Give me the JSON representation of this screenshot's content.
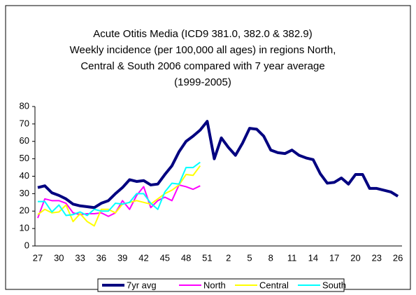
{
  "chart_data": {
    "type": "line",
    "title": [
      "Acute Otitis Media (ICD9 381.0, 382.0 & 382.9)",
      "Weekly incidence (per 100,000 all ages) in regions North,",
      "Central & South 2006 compared with 7 year average",
      "(1999-2005)"
    ],
    "categories": [
      "27",
      null,
      null,
      "30",
      null,
      null,
      "33",
      null,
      null,
      "36",
      null,
      null,
      "39",
      null,
      null,
      "42",
      null,
      null,
      "45",
      null,
      null,
      "48",
      null,
      null,
      "51",
      null,
      null,
      "2",
      null,
      null,
      "5",
      null,
      null,
      "8",
      null,
      null,
      "11",
      null,
      null,
      "14",
      null,
      null,
      "17",
      null,
      null,
      "20",
      null,
      null,
      "23",
      null,
      null,
      "26"
    ],
    "ylim": [
      0,
      80
    ],
    "yticks": [
      0,
      10,
      20,
      30,
      40,
      50,
      60,
      70,
      80
    ],
    "legend": "bottom",
    "series": [
      {
        "name": "7yr avg",
        "color": "#000080",
        "values": [
          33.5,
          34.5,
          30.5,
          29,
          27,
          24,
          23,
          22.5,
          22,
          24.5,
          26,
          30,
          33.5,
          38,
          37,
          37.5,
          35,
          35.5,
          41,
          46,
          54,
          60,
          63,
          66.5,
          71.5,
          50,
          62,
          56.5,
          52,
          59,
          67.5,
          67,
          63,
          55,
          53.5,
          53,
          55,
          52,
          50.5,
          49.5,
          41.5,
          36,
          36.5,
          39,
          35.5,
          41,
          41,
          33,
          33,
          32,
          31,
          28.5
        ]
      },
      {
        "name": "North",
        "color": "#ff00ff",
        "values": [
          16,
          27,
          26,
          26,
          24.5,
          19,
          18,
          18.5,
          18.5,
          19,
          17,
          19,
          26,
          21,
          29,
          34,
          22,
          26,
          28,
          26,
          35,
          34,
          32.5,
          34.5,
          null,
          null,
          null,
          null,
          null,
          null,
          null,
          null,
          null,
          null,
          null,
          null,
          null,
          null,
          null,
          null,
          null,
          null,
          null,
          null,
          null,
          null,
          null,
          null,
          null,
          null,
          null,
          null
        ]
      },
      {
        "name": "Central",
        "color": "#ffff00",
        "values": [
          18,
          21,
          19,
          19.5,
          23.5,
          14,
          18.5,
          14,
          11.5,
          21,
          21,
          19,
          24,
          25,
          26,
          25,
          24,
          27,
          30,
          32,
          35,
          41,
          40.5,
          46,
          null,
          null,
          null,
          null,
          null,
          null,
          null,
          null,
          null,
          null,
          null,
          null,
          null,
          null,
          null,
          null,
          null,
          null,
          null,
          null,
          null,
          null,
          null,
          null,
          null,
          null,
          null,
          null
        ]
      },
      {
        "name": "South",
        "color": "#00ffff",
        "values": [
          25.5,
          25.5,
          19.5,
          23.5,
          17.5,
          18,
          19.5,
          17.5,
          21,
          20,
          20,
          24.5,
          24,
          25,
          30,
          30,
          24.5,
          21,
          31,
          36,
          35.5,
          45,
          45,
          48,
          null,
          null,
          null,
          null,
          null,
          null,
          null,
          null,
          null,
          null,
          null,
          null,
          null,
          null,
          null,
          null,
          null,
          null,
          null,
          null,
          null,
          null,
          null,
          null,
          null,
          null,
          null,
          null
        ]
      }
    ]
  }
}
